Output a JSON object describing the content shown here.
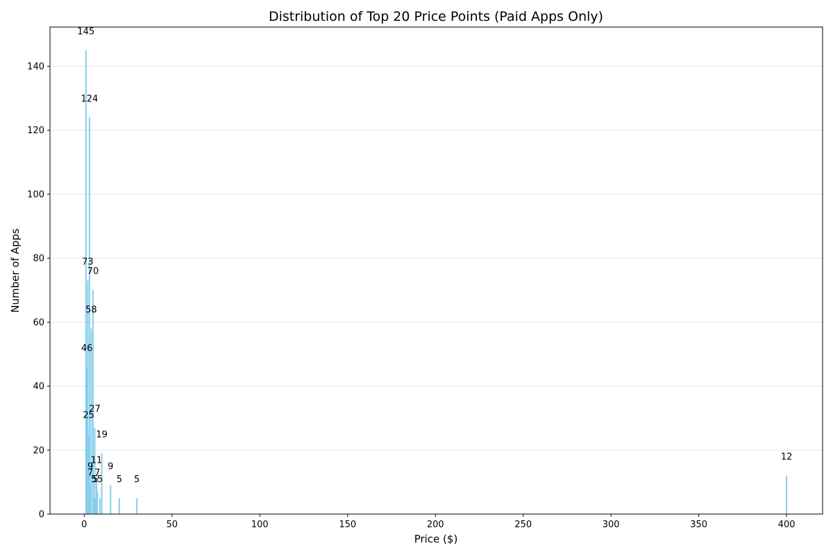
{
  "chart_data": {
    "type": "bar",
    "title": "Distribution of Top 20 Price Points (Paid Apps Only)",
    "xlabel": "Price ($)",
    "ylabel": "Number of Apps",
    "xlim": [
      -19.5,
      420.5
    ],
    "ylim": [
      0,
      152.25
    ],
    "xticks": [
      0,
      50,
      100,
      150,
      200,
      250,
      300,
      350,
      400
    ],
    "yticks": [
      0,
      20,
      40,
      60,
      80,
      100,
      120,
      140
    ],
    "grid": "y-axis",
    "bar_color": "#87ceeb",
    "points": [
      {
        "x": 0.99,
        "y": 145
      },
      {
        "x": 2.99,
        "y": 124
      },
      {
        "x": 1.99,
        "y": 73
      },
      {
        "x": 4.99,
        "y": 70
      },
      {
        "x": 3.99,
        "y": 58
      },
      {
        "x": 1.49,
        "y": 46
      },
      {
        "x": 5.99,
        "y": 27
      },
      {
        "x": 2.49,
        "y": 25
      },
      {
        "x": 9.99,
        "y": 19
      },
      {
        "x": 6.99,
        "y": 11
      },
      {
        "x": 14.99,
        "y": 9
      },
      {
        "x": 3.49,
        "y": 9
      },
      {
        "x": 399.99,
        "y": 12
      },
      {
        "x": 7.49,
        "y": 7
      },
      {
        "x": 3.49,
        "y": 7
      },
      {
        "x": 5.49,
        "y": 5
      },
      {
        "x": 6.49,
        "y": 5
      },
      {
        "x": 8.99,
        "y": 5
      },
      {
        "x": 19.99,
        "y": 5
      },
      {
        "x": 29.99,
        "y": 5
      }
    ]
  }
}
